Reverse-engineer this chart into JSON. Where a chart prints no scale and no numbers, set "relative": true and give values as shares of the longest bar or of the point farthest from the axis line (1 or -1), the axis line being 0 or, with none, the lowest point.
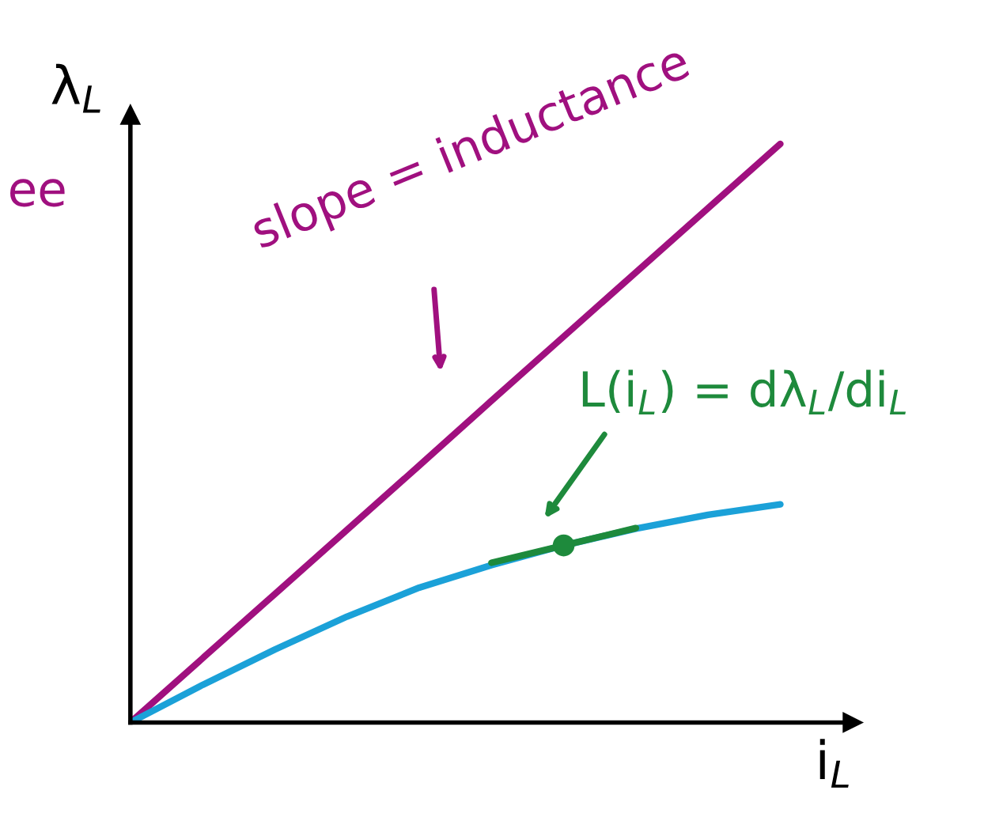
{
  "chart_data": {
    "type": "line",
    "relative": true,
    "xlabel": "i$_{L}$",
    "ylabel": "λ$_{L}$",
    "categories": [
      null,
      null,
      null,
      null,
      null,
      null,
      null,
      null,
      null,
      null
    ],
    "series": [
      {
        "color": "#a0107f",
        "values": [
          0,
          0.111,
          0.222,
          0.333,
          0.444,
          0.556,
          0.667,
          0.778,
          0.889,
          1
        ]
      },
      {
        "color": "#1ba1d8",
        "values": [
          0,
          0.065,
          0.126,
          0.183,
          0.233,
          0.272,
          0.306,
          0.335,
          0.359,
          0.377
        ]
      },
      {
        "color": "#1e8a3c",
        "values": [
          null,
          null,
          null,
          null,
          null,
          0.276,
          0.306,
          0.336,
          null,
          null
        ]
      }
    ],
    "annotations": [
      "slope = inductance",
      "L(i$_{L}$) = dλ$_{L}$/di$_{L}$",
      "ee"
    ],
    "grid": false,
    "legend": false
  }
}
